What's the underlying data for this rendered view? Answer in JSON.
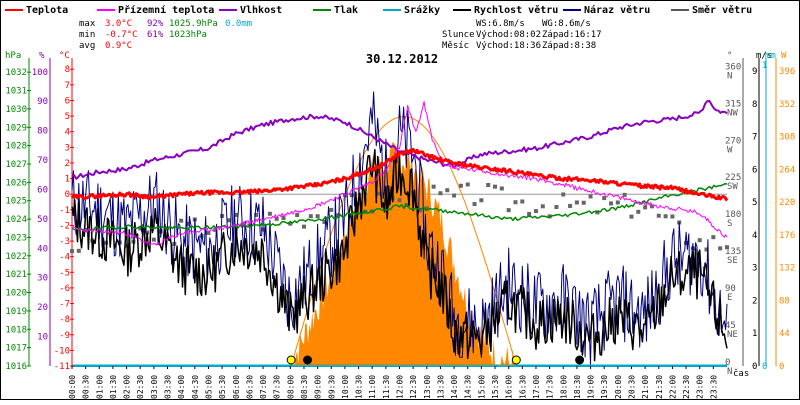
{
  "chart_data": {
    "type": "line",
    "title": "30.12.2012",
    "legend": [
      {
        "key": "teplota",
        "label": "Teplota",
        "color": "#ff0000"
      },
      {
        "key": "prizemni",
        "label": "Přízemní teplota",
        "color": "#ff00ff"
      },
      {
        "key": "vlhkost",
        "label": "Vlhkost",
        "color": "#8800c0"
      },
      {
        "key": "tlak",
        "label": "Tlak",
        "color": "#008800"
      },
      {
        "key": "srazky",
        "label": "Srážky",
        "color": "#00aacc"
      },
      {
        "key": "rychlost",
        "label": "Rychlost větru",
        "color": "#000000"
      },
      {
        "key": "naraz",
        "label": "Náraz větru",
        "color": "#000080"
      },
      {
        "key": "smer",
        "label": "Směr větru",
        "color": "#555555"
      }
    ],
    "stats": [
      {
        "label": "max",
        "t": "3.0°C",
        "h": "92%",
        "p": "1025.9hPa",
        "r": "0.0mm"
      },
      {
        "label": "min",
        "t": "-0.7°C",
        "h": "61%",
        "p": "1023hPa",
        "r": ""
      },
      {
        "label": "avg",
        "t": "0.9°C",
        "h": "",
        "p": "",
        "r": ""
      }
    ],
    "wind_info": {
      "ws": "WS:6.8m/s",
      "wg": "WG:8.6m/s"
    },
    "sun": {
      "label": "Slunce",
      "rise": "Východ:08:02",
      "set": "Západ:16:17"
    },
    "moon": {
      "label": "Měsíc",
      "rise": "Východ:18:36",
      "set": "Západ:8:38"
    },
    "axes": {
      "hpa": {
        "label": "hPa",
        "ticks": [
          "1016",
          "1017",
          "1018",
          "1019",
          "1020",
          "1021",
          "1022",
          "1023",
          "1024",
          "1025",
          "1026",
          "1027",
          "1028",
          "1029",
          "1030",
          "1031",
          "1032"
        ]
      },
      "pct": {
        "label": "%",
        "ticks": [
          "10",
          "20",
          "30",
          "40",
          "50",
          "60",
          "70",
          "80",
          "90",
          "100"
        ]
      },
      "temp": {
        "label": "°C",
        "ticks": [
          "-11",
          "-10",
          "-9",
          "-8",
          "-7",
          "-6",
          "-5",
          "-4",
          "-3",
          "-2",
          "-1",
          "0",
          "1",
          "2",
          "3",
          "4",
          "5",
          "6",
          "7",
          "8"
        ]
      },
      "dir": {
        "label": "°",
        "ticks": [
          "0",
          "45",
          "90",
          "135",
          "180",
          "225",
          "270",
          "315",
          "360"
        ],
        "cardinals": [
          "N",
          "NE",
          "E",
          "SE",
          "S",
          "SW",
          "W",
          "NW",
          "N"
        ]
      },
      "ms": {
        "label": "m/s",
        "ticks": [
          "0",
          "1",
          "2",
          "3",
          "4",
          "5",
          "6",
          "7",
          "8",
          "9"
        ]
      },
      "mm": {
        "label": "mm",
        "ticks": [
          "0",
          "1"
        ]
      },
      "w": {
        "label": "W",
        "ticks": [
          "0",
          "44",
          "88",
          "132",
          "176",
          "220",
          "264",
          "308",
          "352",
          "396"
        ]
      },
      "time": {
        "label": "čas",
        "ticks": [
          "00:00",
          "00:30",
          "01:00",
          "01:30",
          "02:00",
          "02:30",
          "03:00",
          "03:30",
          "04:00",
          "04:30",
          "05:00",
          "05:30",
          "06:00",
          "06:30",
          "07:00",
          "07:30",
          "08:00",
          "08:30",
          "09:00",
          "09:30",
          "10:00",
          "10:30",
          "11:00",
          "11:30",
          "12:00",
          "12:30",
          "13:00",
          "13:30",
          "14:00",
          "14:30",
          "15:00",
          "15:30",
          "16:00",
          "16:30",
          "17:00",
          "17:30",
          "18:00",
          "18:30",
          "19:00",
          "19:30",
          "20:00",
          "20:30",
          "21:00",
          "21:30",
          "22:00",
          "22:30",
          "23:00",
          "23:30"
        ]
      }
    },
    "series": {
      "teplota": {
        "x": [
          0,
          1,
          2,
          3,
          4,
          5,
          6,
          7,
          8,
          9,
          10,
          11,
          11.5,
          12,
          12.5,
          13,
          13.5,
          14,
          15,
          16,
          17,
          18,
          19,
          20,
          21,
          22,
          23,
          24
        ],
        "y": [
          -0.2,
          -0.1,
          0,
          -0.2,
          0,
          0.1,
          0.1,
          0.2,
          0.4,
          0.6,
          1.0,
          1.6,
          2.0,
          2.6,
          2.8,
          2.5,
          2.2,
          2.0,
          1.7,
          1.5,
          1.2,
          1.0,
          0.9,
          0.7,
          0.5,
          0.4,
          0,
          -0.3
        ]
      },
      "prizemni": {
        "x": [
          0,
          1,
          2,
          3,
          4,
          5,
          6,
          7,
          8,
          9,
          10,
          11,
          11.5,
          12,
          12.3,
          12.6,
          12.9,
          13.2,
          13.6,
          14,
          15,
          16,
          17,
          18,
          19,
          20,
          21,
          22,
          23,
          23.5,
          24
        ],
        "y": [
          -2.2,
          -2.4,
          -2.5,
          -3.3,
          -2.5,
          -2.3,
          -2.0,
          -1.6,
          -1.2,
          -0.7,
          0,
          0.8,
          1.5,
          3.0,
          5.6,
          4.0,
          5.8,
          3.5,
          2.0,
          1.7,
          1.5,
          1.2,
          1.0,
          0.6,
          0.2,
          -0.2,
          -0.6,
          -0.9,
          -1.2,
          -2.0,
          -2.8
        ]
      },
      "vlhkost": {
        "x": [
          0,
          1,
          2,
          3,
          4,
          5,
          6,
          7,
          8,
          9,
          10,
          11,
          12,
          13,
          14,
          15,
          16,
          17,
          18,
          19,
          20,
          21,
          22,
          23,
          23.3,
          23.6,
          24
        ],
        "y": [
          64,
          66,
          67,
          70,
          72,
          74,
          79,
          82,
          84,
          85,
          83,
          78,
          73,
          70,
          68,
          72,
          73,
          74,
          76,
          78,
          81,
          83,
          84,
          86,
          91,
          87,
          86
        ]
      },
      "tlak": {
        "x": [
          0,
          2,
          4,
          6,
          8,
          10,
          12,
          14,
          16,
          18,
          20,
          22,
          23,
          24
        ],
        "y": [
          1023.4,
          1023.6,
          1023.5,
          1023.6,
          1023.8,
          1024.2,
          1024.7,
          1024.4,
          1024.0,
          1024.2,
          1024.6,
          1025.3,
          1025.6,
          1025.9
        ]
      },
      "rychlost": {
        "x": [
          0,
          1,
          2,
          3,
          4,
          5,
          6,
          7,
          8,
          9,
          10,
          10.5,
          11,
          11.5,
          12,
          12.5,
          13,
          13.5,
          14,
          15,
          16,
          17,
          18,
          19,
          20,
          21,
          22,
          23,
          24
        ],
        "y": [
          4.5,
          4.0,
          3.5,
          4.2,
          3.0,
          2.8,
          3.8,
          3.5,
          1.5,
          2.5,
          3.5,
          5.0,
          6.2,
          4.8,
          6.0,
          5.5,
          3.0,
          2.5,
          1.0,
          0.8,
          2.0,
          1.3,
          1.5,
          0.8,
          1.5,
          1.0,
          2.7,
          2.8,
          0.8
        ]
      },
      "naraz": {
        "x": [
          0,
          1,
          2,
          3,
          4,
          5,
          6,
          7,
          8,
          9,
          10,
          10.5,
          11,
          11.5,
          12,
          12.5,
          13,
          13.5,
          14,
          15,
          16,
          17,
          18,
          19,
          20,
          21,
          22,
          23,
          24
        ],
        "y": [
          5.0,
          4.8,
          4.2,
          5.0,
          3.8,
          3.5,
          4.5,
          4.2,
          2.0,
          3.2,
          4.5,
          6.0,
          7.5,
          5.8,
          7.0,
          6.5,
          3.8,
          3.0,
          1.5,
          1.2,
          2.5,
          1.8,
          2.0,
          1.2,
          2.0,
          1.5,
          3.2,
          3.4,
          1.0
        ]
      },
      "smer": {
        "x": [
          0,
          1,
          2,
          3,
          4,
          5,
          6,
          7,
          8,
          9,
          10,
          11,
          12,
          13,
          14,
          15,
          16,
          17,
          18,
          19,
          20,
          21,
          22,
          23,
          24
        ],
        "y": [
          145,
          160,
          150,
          158,
          165,
          170,
          175,
          178,
          180,
          188,
          195,
          198,
          200,
          205,
          205,
          210,
          200,
          198,
          195,
          195,
          195,
          195,
          170,
          150,
          150
        ]
      },
      "slunce": {
        "x": [
          8.0,
          8.5,
          9,
          9.5,
          10,
          10.5,
          11,
          11.5,
          12,
          12.5,
          13,
          13.5,
          14,
          14.5,
          15,
          15.5,
          16,
          16.28
        ],
        "y": [
          0,
          40,
          80,
          120,
          180,
          230,
          260,
          275,
          280,
          270,
          240,
          200,
          140,
          80,
          40,
          15,
          5,
          0
        ]
      }
    },
    "markers": [
      {
        "label": "sunrise",
        "hour": 8.03
      },
      {
        "label": "sunset",
        "hour": 16.28
      },
      {
        "label": "moonset",
        "hour": 8.63
      },
      {
        "label": "moonrise",
        "hour": 18.6
      }
    ]
  }
}
